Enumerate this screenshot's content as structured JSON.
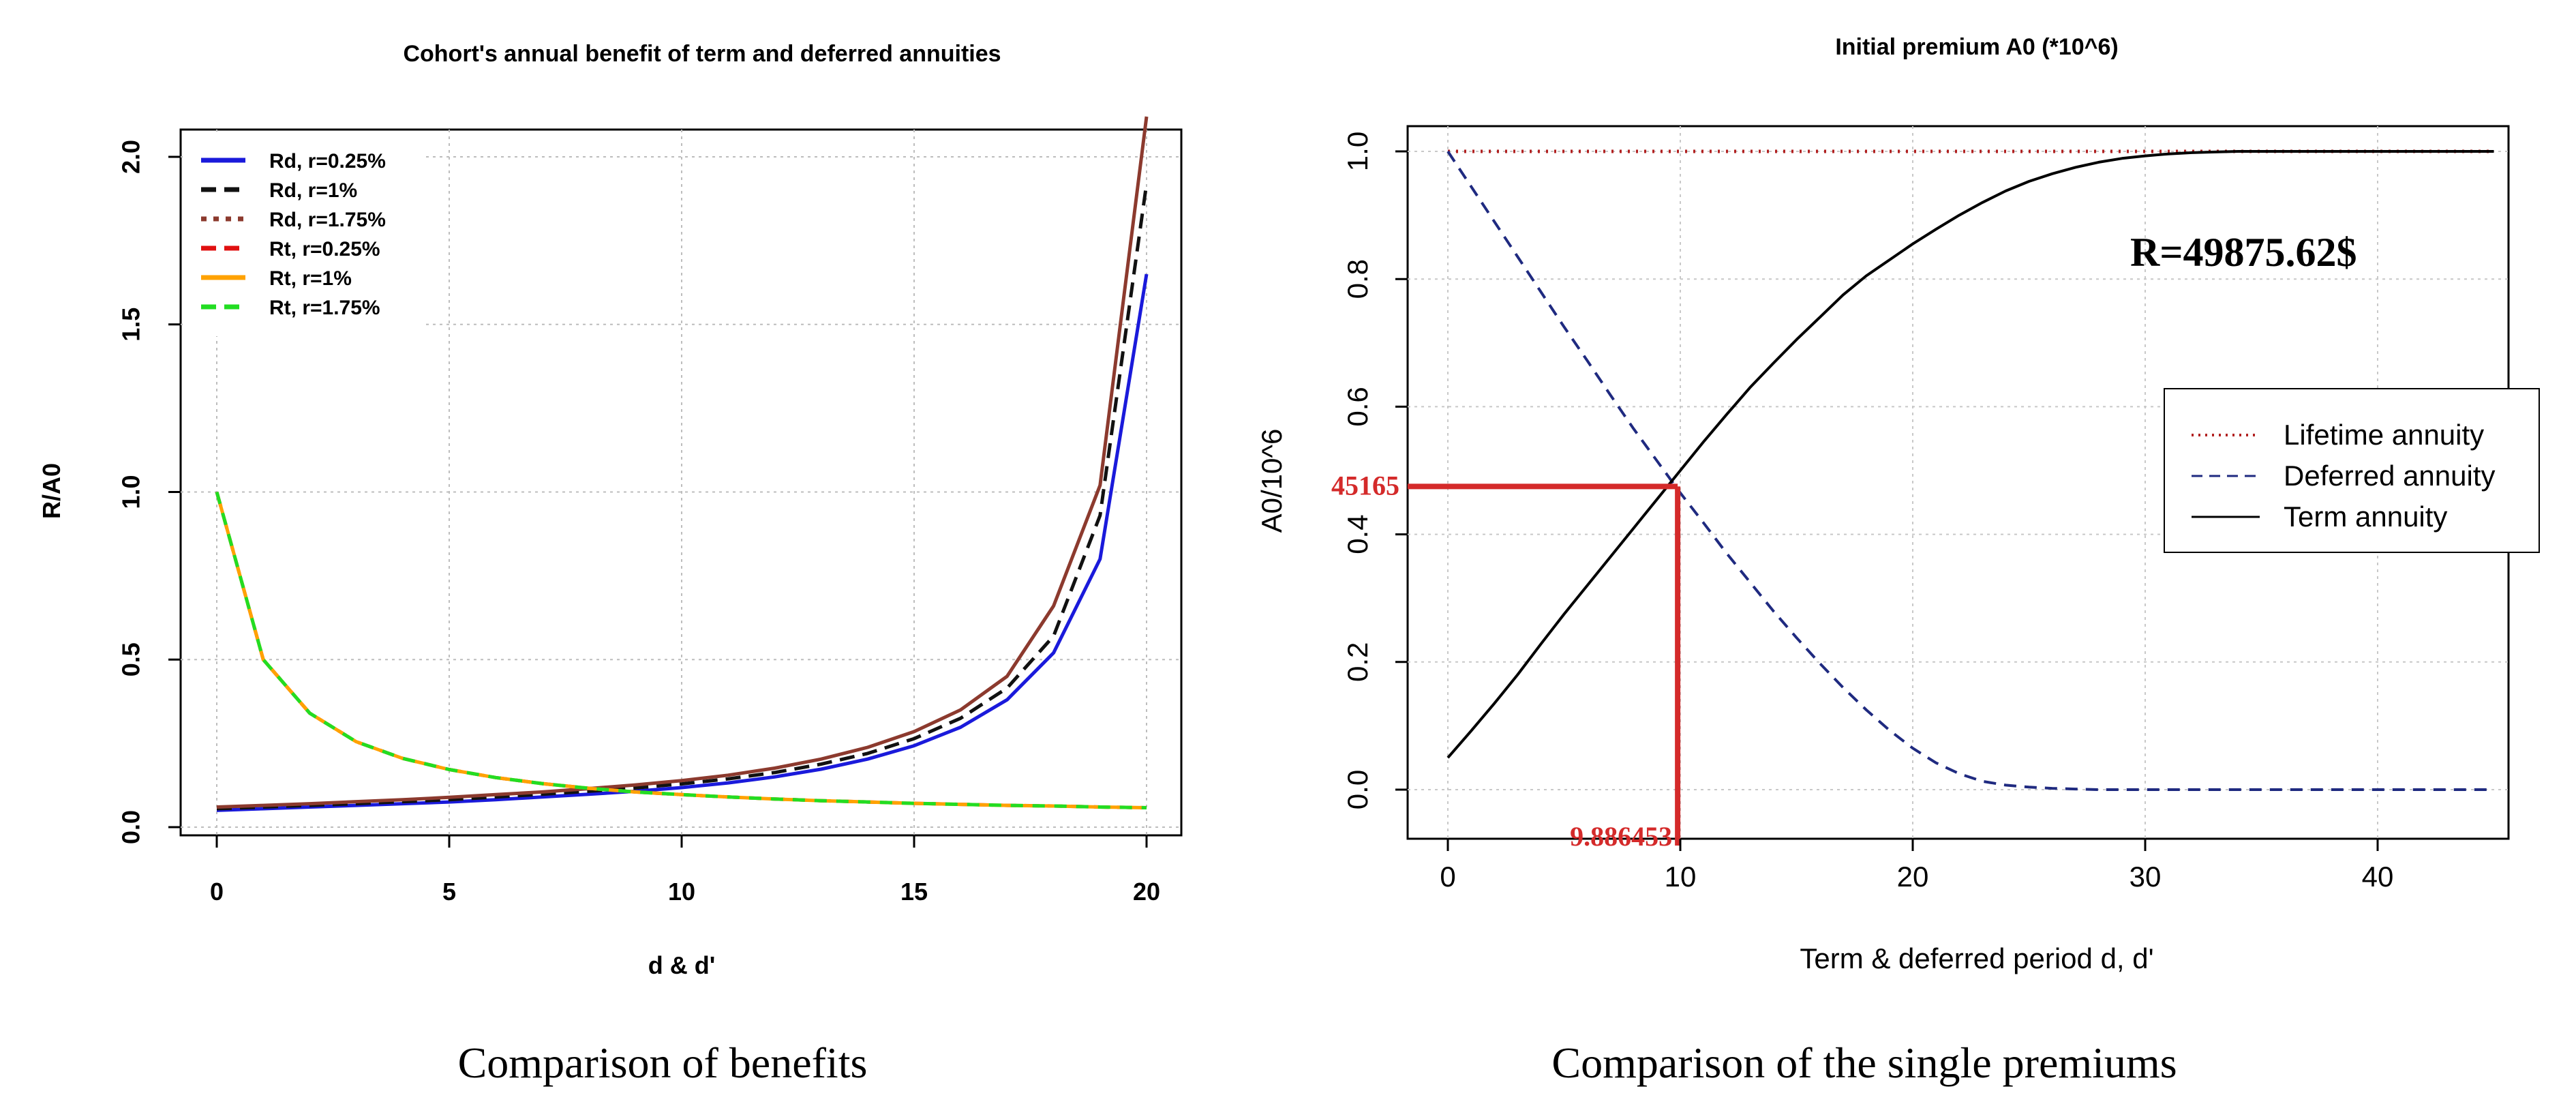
{
  "chart_data": [
    {
      "type": "line",
      "title": "Cohort's annual benefit of term and deferred annuities",
      "xlabel": "d & d'",
      "ylabel": "R/A0",
      "caption": "Comparison of benefits",
      "xlim": [
        0,
        20
      ],
      "ylim": [
        0,
        2.15
      ],
      "xticks": [
        "0",
        "5",
        "10",
        "15",
        "20"
      ],
      "yticks": [
        "0.0",
        "0.5",
        "1.0",
        "1.5",
        "2.0"
      ],
      "xtick_values": [
        0,
        5,
        10,
        15,
        20
      ],
      "ytick_values": [
        0,
        0.5,
        1.0,
        1.5,
        2.0
      ],
      "grid": true,
      "legend_position": "top-left",
      "x": [
        0,
        1,
        2,
        3,
        4,
        5,
        6,
        7,
        8,
        9,
        10,
        11,
        12,
        13,
        14,
        15,
        16,
        17,
        18,
        19,
        20
      ],
      "series": [
        {
          "name": "Rd, r=0.25%",
          "color": "#1a1adb",
          "dash": "solid",
          "values": [
            0.05,
            0.055,
            0.06,
            0.065,
            0.07,
            0.075,
            0.082,
            0.09,
            0.098,
            0.107,
            0.118,
            0.132,
            0.15,
            0.173,
            0.203,
            0.243,
            0.298,
            0.38,
            0.52,
            0.8,
            1.65
          ]
        },
        {
          "name": "Rd, r=1%",
          "color": "#111111",
          "dash": "dashed",
          "values": [
            0.055,
            0.06,
            0.065,
            0.07,
            0.076,
            0.082,
            0.09,
            0.098,
            0.107,
            0.117,
            0.129,
            0.144,
            0.163,
            0.188,
            0.22,
            0.264,
            0.325,
            0.415,
            0.57,
            0.93,
            1.92
          ]
        },
        {
          "name": "Rd, r=1.75%",
          "color": "#8c3a2e",
          "dash": "dotted",
          "style_line_color": "#8c3a2e",
          "values": [
            0.06,
            0.065,
            0.07,
            0.076,
            0.082,
            0.089,
            0.097,
            0.105,
            0.115,
            0.126,
            0.139,
            0.155,
            0.176,
            0.203,
            0.238,
            0.285,
            0.35,
            0.45,
            0.66,
            1.02,
            2.12
          ]
        },
        {
          "name": "Rt, r=0.25%",
          "color": "#e01010",
          "dash": "dashed",
          "values": [
            1.0,
            0.5,
            0.34,
            0.255,
            0.205,
            0.172,
            0.148,
            0.13,
            0.116,
            0.105,
            0.097,
            0.09,
            0.084,
            0.079,
            0.075,
            0.071,
            0.068,
            0.065,
            0.063,
            0.06,
            0.058
          ]
        },
        {
          "name": "Rt, r=1%",
          "color": "#ffa200",
          "dash": "solid",
          "values": [
            1.0,
            0.5,
            0.34,
            0.255,
            0.205,
            0.172,
            0.148,
            0.13,
            0.116,
            0.105,
            0.097,
            0.09,
            0.084,
            0.079,
            0.075,
            0.071,
            0.068,
            0.065,
            0.063,
            0.06,
            0.058
          ]
        },
        {
          "name": "Rt, r=1.75%",
          "color": "#22dd22",
          "dash": "dashed",
          "values": [
            1.0,
            0.5,
            0.34,
            0.255,
            0.205,
            0.172,
            0.148,
            0.13,
            0.116,
            0.105,
            0.097,
            0.09,
            0.084,
            0.079,
            0.075,
            0.071,
            0.068,
            0.065,
            0.063,
            0.06,
            0.058
          ]
        }
      ]
    },
    {
      "type": "line",
      "title": "Initial premium A0 (*10^6)",
      "xlabel": "Term & deferred period d, d'",
      "ylabel": "A0/10^6",
      "caption": "Comparison of the single premiums",
      "xlim": [
        -1.5,
        45.5
      ],
      "ylim": [
        -0.05,
        1.05
      ],
      "xticks": [
        "0",
        "10",
        "20",
        "30",
        "40"
      ],
      "yticks": [
        "0.0",
        "0.2",
        "0.4",
        "0.6",
        "0.8",
        "1.0"
      ],
      "xtick_values": [
        0,
        10,
        20,
        30,
        40
      ],
      "ytick_values": [
        0,
        0.2,
        0.4,
        0.6,
        0.8,
        1.0
      ],
      "grid": true,
      "legend_position": "right",
      "x": [
        0,
        1,
        2,
        3,
        4,
        5,
        6,
        7,
        8,
        9,
        10,
        11,
        12,
        13,
        14,
        15,
        16,
        17,
        18,
        19,
        20,
        21,
        22,
        23,
        24,
        25,
        26,
        27,
        28,
        29,
        30,
        31,
        32,
        33,
        34,
        35,
        36,
        37,
        38,
        39,
        40,
        41,
        42,
        43,
        44,
        45
      ],
      "series": [
        {
          "name": "Lifetime annuity",
          "color": "#b22222",
          "dash": "dotted",
          "values": [
            1,
            1,
            1,
            1,
            1,
            1,
            1,
            1,
            1,
            1,
            1,
            1,
            1,
            1,
            1,
            1,
            1,
            1,
            1,
            1,
            1,
            1,
            1,
            1,
            1,
            1,
            1,
            1,
            1,
            1,
            1,
            1,
            1,
            1,
            1,
            1,
            1,
            1,
            1,
            1,
            1,
            1,
            1,
            1,
            1,
            1
          ]
        },
        {
          "name": "Deferred annuity",
          "color": "#1f2a80",
          "dash": "dashed",
          "values": [
            1.0,
            0.945,
            0.89,
            0.835,
            0.78,
            0.725,
            0.672,
            0.618,
            0.565,
            0.515,
            0.465,
            0.418,
            0.37,
            0.325,
            0.28,
            0.238,
            0.198,
            0.16,
            0.125,
            0.093,
            0.065,
            0.042,
            0.025,
            0.013,
            0.007,
            0.004,
            0.002,
            0.001,
            0,
            0,
            0,
            0,
            0,
            0,
            0,
            0,
            0,
            0,
            0,
            0,
            0,
            0,
            0,
            0,
            0,
            0
          ]
        },
        {
          "name": "Term annuity",
          "color": "#000000",
          "dash": "solid",
          "values": [
            0.05,
            0.092,
            0.135,
            0.18,
            0.228,
            0.275,
            0.32,
            0.365,
            0.41,
            0.455,
            0.5,
            0.545,
            0.588,
            0.63,
            0.668,
            0.705,
            0.74,
            0.775,
            0.805,
            0.83,
            0.855,
            0.878,
            0.9,
            0.92,
            0.938,
            0.953,
            0.965,
            0.975,
            0.983,
            0.989,
            0.993,
            0.996,
            0.998,
            0.999,
            1,
            1,
            1,
            1,
            1,
            1,
            1,
            1,
            1,
            1,
            1,
            1
          ]
        }
      ],
      "annotations": {
        "r_label": "R=49875.62$",
        "y_marker_label": "45165",
        "x_marker_label": "9.886453",
        "marker_color": "#d42a2a",
        "x_marker": 9.886453,
        "y_marker": 0.475
      }
    }
  ]
}
